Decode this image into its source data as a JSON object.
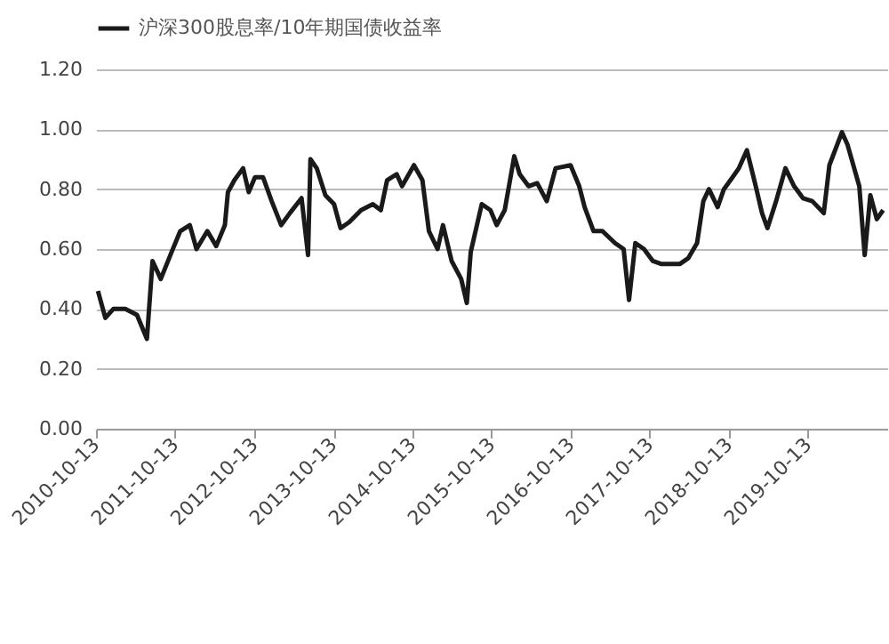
{
  "chart_data": {
    "type": "line",
    "x": [
      "2010-10-22",
      "2010-11-25",
      "2011-01-01",
      "2011-02-25",
      "2011-04-20",
      "2011-06-05",
      "2011-07-01",
      "2011-08-08",
      "2011-09-27",
      "2011-11-06",
      "2011-12-20",
      "2012-01-20",
      "2012-03-10",
      "2012-04-20",
      "2012-05-30",
      "2012-06-13",
      "2012-07-13",
      "2012-08-22",
      "2012-09-17",
      "2012-10-16",
      "2012-11-22",
      "2013-01-01",
      "2013-02-14",
      "2013-03-26",
      "2013-05-19",
      "2013-06-18",
      "2013-06-29",
      "2013-07-28",
      "2013-09-06",
      "2013-10-16",
      "2013-11-15",
      "2013-12-25",
      "2014-02-18",
      "2014-04-13",
      "2014-05-20",
      "2014-06-18",
      "2014-08-01",
      "2014-08-26",
      "2014-10-20",
      "2014-11-28",
      "2014-12-28",
      "2015-02-06",
      "2015-03-03",
      "2015-04-12",
      "2015-05-26",
      "2015-06-21",
      "2015-07-09",
      "2015-08-29",
      "2015-10-08",
      "2015-11-06",
      "2015-12-13",
      "2016-01-26",
      "2016-02-20",
      "2016-04-01",
      "2016-05-11",
      "2016-06-24",
      "2016-08-04",
      "2016-10-12",
      "2016-11-21",
      "2016-12-16",
      "2017-01-26",
      "2017-03-08",
      "2017-05-05",
      "2017-06-14",
      "2017-07-09",
      "2017-08-07",
      "2017-09-16",
      "2017-10-27",
      "2017-12-06",
      "2018-01-15",
      "2018-02-28",
      "2018-04-09",
      "2018-05-19",
      "2018-06-17",
      "2018-07-13",
      "2018-08-22",
      "2018-09-20",
      "2018-10-30",
      "2018-11-28",
      "2019-01-04",
      "2019-02-14",
      "2019-03-15",
      "2019-04-09",
      "2019-05-19",
      "2019-07-01",
      "2019-08-10",
      "2019-09-20",
      "2019-11-02",
      "2019-12-25",
      "2020-01-20",
      "2020-03-18",
      "2020-04-12",
      "2020-06-06",
      "2020-07-01",
      "2020-07-27",
      "2020-08-26",
      "2020-09-24"
    ],
    "series": [
      {
        "name": "沪深300股息率/10年期国债收益率",
        "color": "#1a1a1a",
        "values": [
          0.46,
          0.37,
          0.4,
          0.4,
          0.38,
          0.3,
          0.56,
          0.5,
          0.59,
          0.66,
          0.68,
          0.6,
          0.66,
          0.61,
          0.68,
          0.79,
          0.83,
          0.87,
          0.79,
          0.84,
          0.84,
          0.76,
          0.68,
          0.72,
          0.77,
          0.58,
          0.9,
          0.87,
          0.78,
          0.75,
          0.67,
          0.69,
          0.73,
          0.75,
          0.73,
          0.83,
          0.85,
          0.81,
          0.88,
          0.83,
          0.66,
          0.6,
          0.68,
          0.56,
          0.5,
          0.42,
          0.59,
          0.75,
          0.73,
          0.68,
          0.73,
          0.91,
          0.85,
          0.81,
          0.82,
          0.76,
          0.87,
          0.88,
          0.81,
          0.74,
          0.66,
          0.66,
          0.62,
          0.6,
          0.43,
          0.62,
          0.6,
          0.56,
          0.55,
          0.55,
          0.55,
          0.57,
          0.62,
          0.76,
          0.8,
          0.74,
          0.8,
          0.84,
          0.87,
          0.93,
          0.81,
          0.72,
          0.67,
          0.76,
          0.87,
          0.81,
          0.77,
          0.76,
          0.72,
          0.88,
          0.99,
          0.95,
          0.81,
          0.58,
          0.78,
          0.7,
          0.73
        ]
      }
    ],
    "xlim": [
      "2010-10-13",
      "2020-10-13"
    ],
    "xticks": [
      "2010-10-13",
      "2011-10-13",
      "2012-10-13",
      "2013-10-13",
      "2014-10-13",
      "2015-10-13",
      "2016-10-13",
      "2017-10-13",
      "2018-10-13",
      "2019-10-13"
    ],
    "ylim": [
      0,
      1.2
    ],
    "yticks": [
      {
        "value": 0,
        "label": "0.00"
      },
      {
        "value": 0.2,
        "label": "0.20"
      },
      {
        "value": 0.4,
        "label": "0.40"
      },
      {
        "value": 0.6,
        "label": "0.60"
      },
      {
        "value": 0.8,
        "label": "0.80"
      },
      {
        "value": 1.0,
        "label": "1.00"
      },
      {
        "value": 1.2,
        "label": "1.20"
      }
    ],
    "grid": "y",
    "legend": "top",
    "marker": "none",
    "line_style": "solid"
  }
}
